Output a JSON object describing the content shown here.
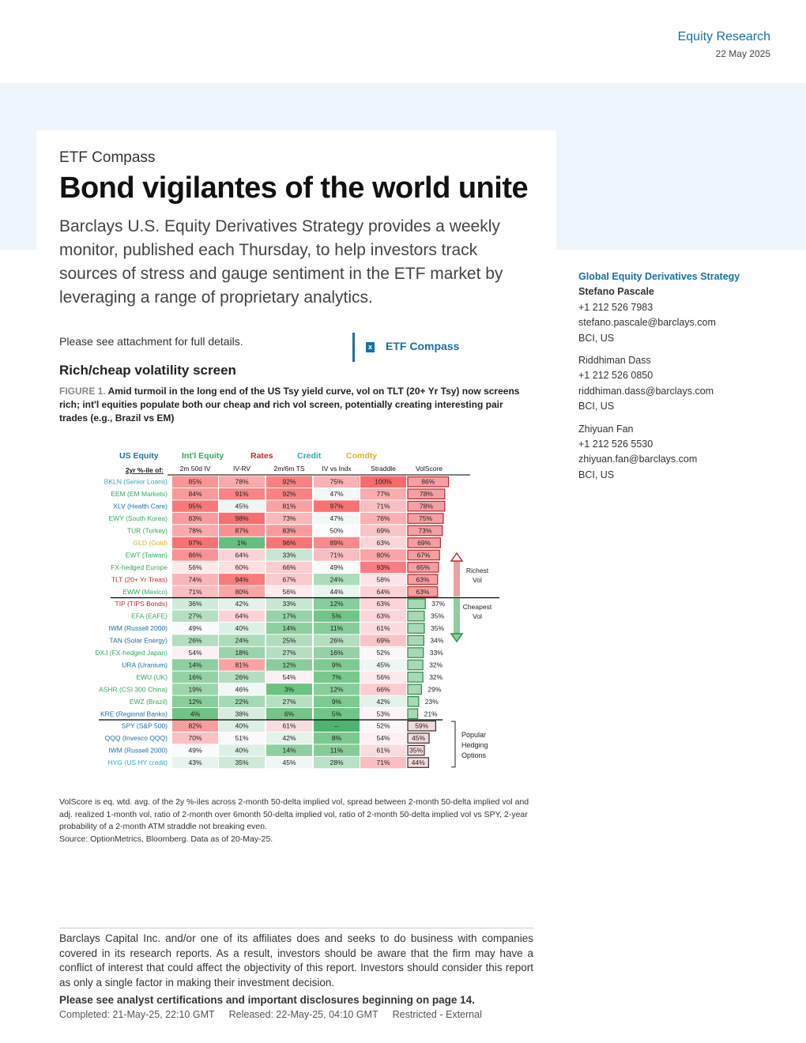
{
  "header": {
    "division": "Equity Research",
    "date": "22 May 2025"
  },
  "title_block": {
    "series": "ETF Compass",
    "title": "Bond vigilantes of the world unite",
    "intro": "Barclays U.S. Equity Derivatives Strategy provides a weekly monitor, published each Thursday, to help investors track sources of stress and gauge sentiment in the ETF market by leveraging a range of proprietary analytics."
  },
  "attachment": {
    "note": "Please see attachment for full details.",
    "link_label": "ETF Compass",
    "icon": "excel-file-icon"
  },
  "section": {
    "heading": "Rich/cheap volatility screen"
  },
  "figure": {
    "label": "FIGURE 1.",
    "caption": "Amid turmoil in the long end of the US Tsy yield curve, vol on TLT (20+ Yr Tsy) now screens rich; int'l equities populate both our cheap and rich vol screen, potentially creating interesting pair trades (e.g., Brazil vs EM)"
  },
  "contacts": {
    "team": "Global Equity Derivatives Strategy",
    "people": [
      {
        "name": "Stefano Pascale",
        "phone": "+1 212 526 7983",
        "email": "stefano.pascale@barclays.com",
        "entity": "BCI, US"
      },
      {
        "name": "Riddhiman Dass",
        "phone": "+1 212 526 0850",
        "email": "riddhiman.dass@barclays.com",
        "entity": "BCI, US"
      },
      {
        "name": "Zhiyuan Fan",
        "phone": "+1 212 526 5530",
        "email": "zhiyuan.fan@barclays.com",
        "entity": "BCI, US"
      }
    ]
  },
  "chart_data": {
    "type": "table",
    "legend": [
      {
        "label": "US Equity",
        "color": "#1a6fa8"
      },
      {
        "label": "Int'l Equity",
        "color": "#2eaa5c"
      },
      {
        "label": "Rates",
        "color": "#c0272d"
      },
      {
        "label": "Credit",
        "color": "#2eaab8"
      },
      {
        "label": "Comdty",
        "color": "#e0b020"
      }
    ],
    "row_header": "2yr %-ile of:",
    "columns": [
      "2m 50d IV",
      "IV-RV",
      "2m/6m TS",
      "IV vs Indx",
      "Straddle",
      "VolScore"
    ],
    "rows": [
      {
        "label": "BKLN (Senior Loans)",
        "cls": "Credit",
        "values": [
          "85%",
          "78%",
          "92%",
          "75%",
          "100%"
        ],
        "volscore": 86,
        "group": "rich"
      },
      {
        "label": "EEM (EM Markets)",
        "cls": "Int'l Equity",
        "values": [
          "84%",
          "91%",
          "92%",
          "47%",
          "77%"
        ],
        "volscore": 78,
        "group": "rich"
      },
      {
        "label": "XLV (Health Care)",
        "cls": "US Equity",
        "values": [
          "95%",
          "45%",
          "81%",
          "97%",
          "71%"
        ],
        "volscore": 78,
        "group": "rich"
      },
      {
        "label": "EWY (South Korea)",
        "cls": "Int'l Equity",
        "values": [
          "83%",
          "98%",
          "73%",
          "47%",
          "76%"
        ],
        "volscore": 75,
        "group": "rich"
      },
      {
        "label": "TUR (Turkey)",
        "cls": "Int'l Equity",
        "values": [
          "78%",
          "87%",
          "83%",
          "50%",
          "69%"
        ],
        "volscore": 73,
        "group": "rich"
      },
      {
        "label": "GLD (Gold)",
        "cls": "Comdty",
        "values": [
          "97%",
          "1%",
          "96%",
          "89%",
          "63%"
        ],
        "volscore": 69,
        "group": "rich"
      },
      {
        "label": "EWT (Taiwan)",
        "cls": "Int'l Equity",
        "values": [
          "86%",
          "64%",
          "33%",
          "71%",
          "80%"
        ],
        "volscore": 67,
        "group": "rich"
      },
      {
        "label": "FX-hedged Europe",
        "cls": "Int'l Equity",
        "values": [
          "56%",
          "60%",
          "66%",
          "49%",
          "93%"
        ],
        "volscore": 65,
        "group": "rich"
      },
      {
        "label": "TLT (20+ Yr Treas)",
        "cls": "Rates",
        "values": [
          "74%",
          "94%",
          "67%",
          "24%",
          "58%"
        ],
        "volscore": 63,
        "group": "rich"
      },
      {
        "label": "EWW (Mexico)",
        "cls": "Int'l Equity",
        "values": [
          "71%",
          "80%",
          "56%",
          "44%",
          "64%"
        ],
        "volscore": 63,
        "group": "rich"
      },
      {
        "label": "TIP (TIPS Bonds)",
        "cls": "Rates",
        "values": [
          "36%",
          "42%",
          "33%",
          "12%",
          "63%"
        ],
        "volscore": 37,
        "group": "cheap"
      },
      {
        "label": "EFA (EAFE)",
        "cls": "Int'l Equity",
        "values": [
          "27%",
          "64%",
          "17%",
          "5%",
          "63%"
        ],
        "volscore": 35,
        "group": "cheap"
      },
      {
        "label": "IWM (Russell 2000)",
        "cls": "US Equity",
        "values": [
          "49%",
          "40%",
          "14%",
          "11%",
          "61%"
        ],
        "volscore": 35,
        "group": "cheap"
      },
      {
        "label": "TAN (Solar Energy)",
        "cls": "US Equity",
        "values": [
          "26%",
          "24%",
          "25%",
          "26%",
          "69%"
        ],
        "volscore": 34,
        "group": "cheap"
      },
      {
        "label": "DXJ (FX-hedged Japan)",
        "cls": "Int'l Equity",
        "values": [
          "54%",
          "18%",
          "27%",
          "16%",
          "52%"
        ],
        "volscore": 33,
        "group": "cheap"
      },
      {
        "label": "URA (Uranium)",
        "cls": "US Equity",
        "values": [
          "14%",
          "81%",
          "12%",
          "9%",
          "45%"
        ],
        "volscore": 32,
        "group": "cheap"
      },
      {
        "label": "EWU (UK)",
        "cls": "Int'l Equity",
        "values": [
          "16%",
          "26%",
          "54%",
          "7%",
          "56%"
        ],
        "volscore": 32,
        "group": "cheap"
      },
      {
        "label": "ASHR (CSI 300 China)",
        "cls": "Int'l Equity",
        "values": [
          "19%",
          "46%",
          "3%",
          "12%",
          "66%"
        ],
        "volscore": 29,
        "group": "cheap"
      },
      {
        "label": "EWZ (Brazil)",
        "cls": "Int'l Equity",
        "values": [
          "12%",
          "22%",
          "27%",
          "9%",
          "42%"
        ],
        "volscore": 23,
        "group": "cheap"
      },
      {
        "label": "KRE (Regional Banks)",
        "cls": "US Equity",
        "values": [
          "4%",
          "38%",
          "6%",
          "5%",
          "53%"
        ],
        "volscore": 21,
        "group": "cheap"
      },
      {
        "label": "SPY (S&P 500)",
        "cls": "US Equity",
        "values": [
          "82%",
          "40%",
          "61%",
          "--",
          "52%"
        ],
        "volscore": 59,
        "group": "hedge"
      },
      {
        "label": "QQQ (Invesco QQQ)",
        "cls": "US Equity",
        "values": [
          "70%",
          "51%",
          "42%",
          "8%",
          "54%"
        ],
        "volscore": 45,
        "group": "hedge"
      },
      {
        "label": "IWM (Russell 2000)",
        "cls": "US Equity",
        "values": [
          "49%",
          "40%",
          "14%",
          "11%",
          "61%"
        ],
        "volscore": 35,
        "group": "hedge"
      },
      {
        "label": "HYG (US HY credit)",
        "cls": "Credit",
        "values": [
          "43%",
          "35%",
          "45%",
          "28%",
          "71%"
        ],
        "volscore": 44,
        "group": "hedge"
      }
    ],
    "annotations": {
      "rich": [
        "Richest",
        "Vol"
      ],
      "cheap": [
        "Cheapest",
        "Vol"
      ],
      "hedge": [
        "Popular",
        "Hedging",
        "Options"
      ]
    }
  },
  "notes": {
    "methodology": "VolScore is eq. wtd. avg. of the 2y %-iles across 2-month 50-delta implied vol, spread between 2-month 50-delta implied vol and adj. realized 1-month vol, ratio of 2-month over 6month 50-delta implied vol, ratio of 2-month 50-delta implied vol vs SPY, 2-year probability of a 2-month ATM straddle not breaking even.",
    "source": "Source: OptionMetrics, Bloomberg. Data as of 20-May-25."
  },
  "footer": {
    "disclaimer": "Barclays Capital Inc. and/or one of its affiliates does and seeks to do business with companies covered in its research reports. As a result, investors should be aware that the firm may have a conflict of interest that could affect the objectivity of this report. Investors should consider this report as only a single factor in making their investment decision.",
    "certifications": "Please see analyst certifications and important disclosures beginning on page 14.",
    "completed": "Completed: 21-May-25, 22:10 GMT",
    "released": "Released: 22-May-25, 04:10 GMT",
    "classification": "Restricted - External"
  }
}
